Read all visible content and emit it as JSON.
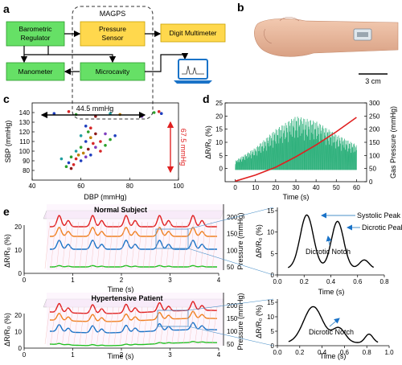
{
  "panel_a": {
    "label": "a",
    "group_title": "MAGPS",
    "boxes": {
      "barometric_line1": "Barometric",
      "barometric_line2": "Regulator",
      "pressure_line1": "Pressure",
      "pressure_line2": "Sensor",
      "digit_multimeter": "Digit Multimeter",
      "manometer": "Manometer",
      "microcavity": "Microcavity"
    },
    "colors": {
      "green": "#66e066",
      "yellow": "#ffd84d",
      "laptop": "#1a73c8"
    }
  },
  "panel_b": {
    "label": "b",
    "scale_bar": "3 cm"
  },
  "panel_c": {
    "label": "c",
    "annotation_x": "44.5 mmHg",
    "annotation_y": "67.5 mmHg",
    "chart_data": {
      "type": "scatter",
      "xlabel": "DBP (mmHg)",
      "ylabel": "SBP (mmHg)",
      "xlim": [
        40,
        100
      ],
      "ylim": [
        70,
        150
      ],
      "xticks": [
        40,
        60,
        80,
        100
      ],
      "yticks": [
        80,
        90,
        100,
        110,
        120,
        130,
        140
      ],
      "points": [
        [
          49,
          139
        ],
        [
          55,
          141
        ],
        [
          58,
          138
        ],
        [
          66,
          136
        ],
        [
          72,
          139
        ],
        [
          76,
          138
        ],
        [
          85,
          136
        ],
        [
          90,
          140
        ],
        [
          92,
          141
        ],
        [
          93,
          139
        ],
        [
          62,
          126
        ],
        [
          64,
          124
        ],
        [
          63,
          120
        ],
        [
          66,
          118
        ],
        [
          60,
          116
        ],
        [
          64,
          114
        ],
        [
          70,
          118
        ],
        [
          72,
          112
        ],
        [
          68,
          110
        ],
        [
          74,
          116
        ],
        [
          62,
          110
        ],
        [
          65,
          108
        ],
        [
          60,
          104
        ],
        [
          63,
          102
        ],
        [
          58,
          100
        ],
        [
          61,
          98
        ],
        [
          66,
          104
        ],
        [
          56,
          94
        ],
        [
          58,
          92
        ],
        [
          60,
          90
        ],
        [
          55,
          88
        ],
        [
          57,
          86
        ],
        [
          54,
          84
        ],
        [
          56,
          82
        ],
        [
          52,
          92
        ],
        [
          59,
          96
        ],
        [
          62,
          94
        ],
        [
          70,
          106
        ],
        [
          68,
          100
        ],
        [
          64,
          96
        ]
      ],
      "point_colors": [
        "#1f3fbf",
        "#d62728",
        "#2ca02c",
        "#8b1a1a",
        "#1f9f9f",
        "#bf7f00",
        "#7f3fbf",
        "#2ca02c",
        "#d62728",
        "#1f3fbf"
      ]
    }
  },
  "panel_d": {
    "label": "d",
    "chart_data": {
      "type": "line",
      "xlabel": "Time (s)",
      "ylabel_left": "ΔR/R₀ (%)",
      "ylabel_right": "Gas Pressure (mmHg)",
      "xlim": [
        -5,
        65
      ],
      "ylim_left": [
        -5,
        25
      ],
      "ylim_right": [
        0,
        300
      ],
      "xticks": [
        0,
        10,
        20,
        30,
        40,
        50,
        60
      ],
      "yticks_left": [
        0,
        5,
        10,
        15,
        20,
        25
      ],
      "yticks_right": [
        0,
        50,
        100,
        150,
        200,
        250,
        300
      ],
      "series": [
        {
          "x": [
            0,
            10,
            20,
            30,
            40,
            50,
            60
          ],
          "envelope_max": [
            3,
            8,
            15,
            20,
            18,
            13,
            9
          ],
          "color": "#2bb07a"
        },
        {
          "x": [
            0,
            10,
            20,
            30,
            40,
            50,
            60
          ],
          "values": [
            2,
            25,
            55,
            95,
            140,
            190,
            245
          ],
          "color": "#e02020"
        }
      ]
    }
  },
  "panel_e": {
    "label": "e",
    "normal": {
      "title": "Normal Subject",
      "xlabel": "Time (s)",
      "ylabel": "ΔR/R₀ (%)",
      "zlabel": "Pressure (mmHg)",
      "xticks": [
        0,
        1,
        2,
        3,
        4
      ],
      "yticks": [
        0,
        10,
        20
      ],
      "zticks": [
        50,
        100,
        150,
        200
      ]
    },
    "hyper": {
      "title": "Hypertensive Patient",
      "xlabel": "Time (s)",
      "ylabel": "ΔR/R₀ (%)",
      "zlabel": "Pressure (mmHg)",
      "xticks": [
        0,
        1,
        2,
        3,
        4
      ],
      "yticks": [
        0,
        10,
        20
      ],
      "zticks": [
        50,
        100,
        150,
        200
      ]
    },
    "zoom_normal": {
      "xlabel": "Time (s)",
      "ylabel": "ΔR/R₀ (%)",
      "xlim": [
        0,
        0.8
      ],
      "ylim": [
        0,
        15
      ],
      "xticks": [
        0.0,
        0.2,
        0.4,
        0.6,
        0.8
      ],
      "yticks": [
        0,
        5,
        10,
        15
      ],
      "annotations": [
        "Systolic Peak",
        "Dicrotic Peak",
        "Dicrotic Notch"
      ]
    },
    "zoom_hyper": {
      "xlabel": "Time (s)",
      "ylabel": "ΔR/R₀ (%)",
      "xlim": [
        0,
        1.0
      ],
      "ylim": [
        0,
        15
      ],
      "xticks": [
        0.0,
        0.2,
        0.4,
        0.6,
        0.8,
        1.0
      ],
      "yticks": [
        0,
        5,
        10,
        15
      ],
      "annotations": [
        "Dicrotic Notch"
      ]
    }
  }
}
